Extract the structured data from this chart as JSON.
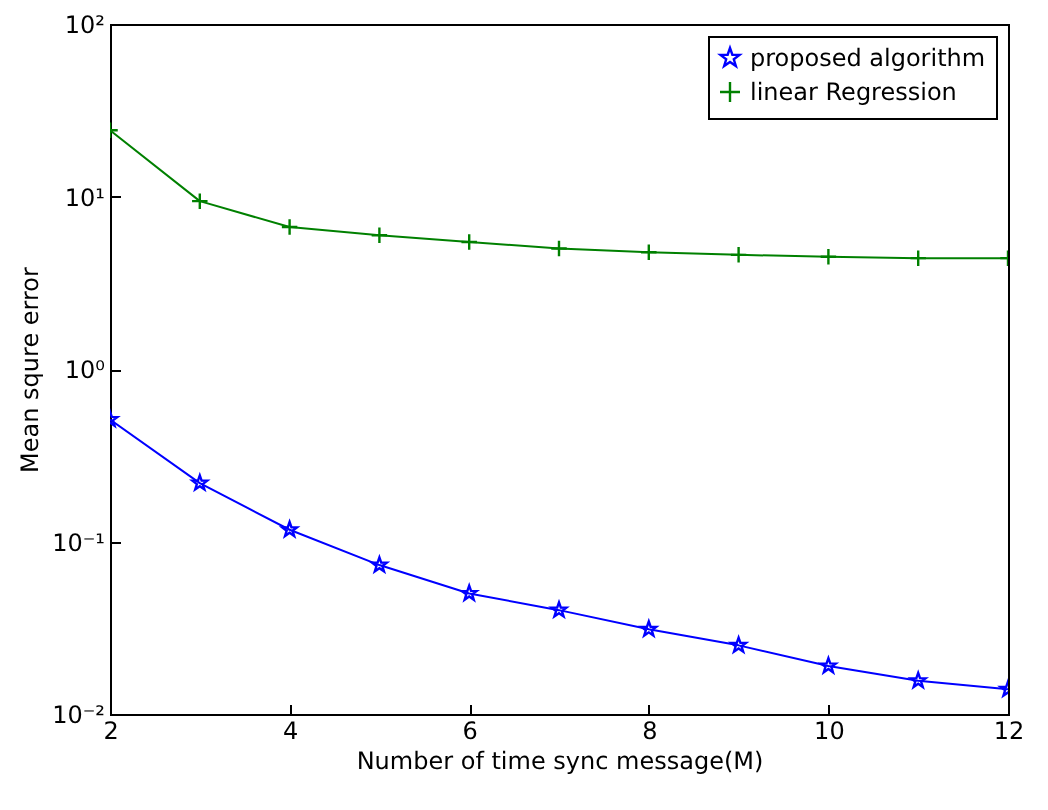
{
  "chart_data": {
    "type": "line",
    "xlabel": "Number of time sync message(M)",
    "ylabel": "Mean squre error",
    "x": [
      2,
      3,
      4,
      5,
      6,
      7,
      8,
      9,
      10,
      11,
      12
    ],
    "series": [
      {
        "name": "proposed algorithm",
        "color": "#0000ff",
        "marker": "star",
        "values": [
          0.51,
          0.218,
          0.117,
          0.073,
          0.05,
          0.04,
          0.031,
          0.025,
          0.019,
          0.0156,
          0.0139
        ]
      },
      {
        "name": "linear Regression",
        "color": "#008000",
        "marker": "cross",
        "values": [
          24.2,
          9.4,
          6.65,
          5.96,
          5.45,
          5.0,
          4.75,
          4.59,
          4.47,
          4.39,
          4.39
        ]
      }
    ],
    "log": "y",
    "xlim": [
      2,
      12
    ],
    "xticks": [
      2,
      4,
      6,
      8,
      10,
      12
    ],
    "ylim": [
      0.01,
      100
    ],
    "yticks": [
      {
        "value": 0.01,
        "label": "10⁻²"
      },
      {
        "value": 0.1,
        "label": "10⁻¹"
      },
      {
        "value": 1,
        "label": "10⁰"
      },
      {
        "value": 10,
        "label": "10¹"
      },
      {
        "value": 100,
        "label": "10²"
      }
    ],
    "grid": false,
    "legend": "top right",
    "line_style": "solid"
  }
}
